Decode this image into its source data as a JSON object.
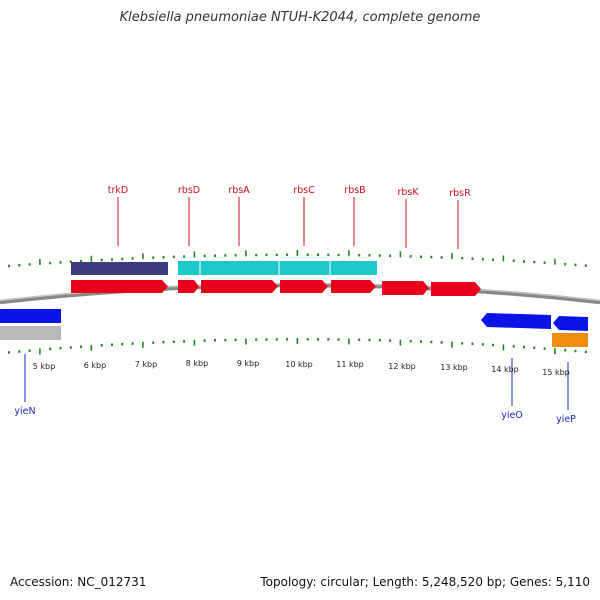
{
  "title": "Klebsiella pneumoniae NTUH-K2044, complete genome",
  "footer": {
    "accession": "Accession: NC_012731",
    "stats": "Topology: circular; Length: 5,248,520 bp; Genes: 5,110"
  },
  "colors": {
    "forward_cds": "#e8001a",
    "reverse_cds": "#0a14e6",
    "gene_feature_dark": "#3d3a80",
    "gene_feature_cyan": "#1ec8c8",
    "grey_feature": "#b8b8b8",
    "orange_feature": "#f08c10",
    "tick": "#1e8a1e",
    "backbone": "#888888",
    "label_top": "#cc1122",
    "label_bottom": "#1a2abf"
  },
  "scale": {
    "unit": "kbp",
    "ticks_kbp": [
      5,
      6,
      7,
      8,
      9,
      10,
      11,
      12,
      13,
      14,
      15
    ],
    "tick_labels": [
      "5 kbp",
      "6 kbp",
      "7 kbp",
      "8 kbp",
      "9 kbp",
      "10 kbp",
      "11 kbp",
      "12 kbp",
      "13 kbp",
      "14 kbp",
      "15 kbp"
    ]
  },
  "genes_top": [
    {
      "name": "trkD"
    },
    {
      "name": "rbsD"
    },
    {
      "name": "rbsA"
    },
    {
      "name": "rbsC"
    },
    {
      "name": "rbsB"
    },
    {
      "name": "rbsK"
    },
    {
      "name": "rbsR"
    }
  ],
  "genes_bottom": [
    {
      "name": "yieN"
    },
    {
      "name": "yieO"
    },
    {
      "name": "yieP"
    }
  ]
}
